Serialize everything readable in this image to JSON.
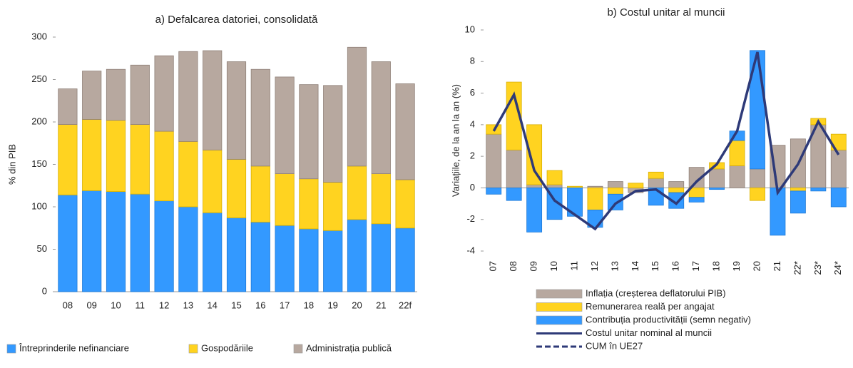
{
  "chart_data": [
    {
      "type": "bar",
      "stacked": true,
      "title": "a) Defalcarea datoriei, consolidată",
      "ylabel": "% din PIB",
      "categories": [
        "08",
        "09",
        "10",
        "11",
        "12",
        "13",
        "14",
        "15",
        "16",
        "17",
        "18",
        "19",
        "20",
        "21",
        "22f"
      ],
      "series": [
        {
          "name": "Întreprinderile nefinanciare",
          "color": "#3399ff",
          "values": [
            114,
            119,
            118,
            115,
            107,
            100,
            93,
            87,
            82,
            78,
            74,
            72,
            85,
            80,
            75
          ]
        },
        {
          "name": "Gospodăriile",
          "color": "#ffd320",
          "values": [
            83,
            84,
            84,
            82,
            82,
            77,
            74,
            69,
            66,
            61,
            59,
            57,
            63,
            59,
            57
          ]
        },
        {
          "name": "Administrația publică",
          "color": "#b7a89f",
          "values": [
            42,
            57,
            60,
            70,
            89,
            106,
            117,
            115,
            114,
            114,
            111,
            114,
            140,
            132,
            113
          ]
        }
      ],
      "ylim": [
        0,
        300
      ],
      "yticks": [
        0,
        50,
        100,
        150,
        200,
        250,
        300
      ],
      "legend": "bottom"
    },
    {
      "type": "bar",
      "stacked": true,
      "title": "b) Costul unitar al muncii",
      "ylabel": "Variațiile, de la an la an (%)",
      "categories": [
        "07",
        "08",
        "09",
        "10",
        "11",
        "12",
        "13",
        "14",
        "15",
        "16",
        "17",
        "18",
        "19",
        "20",
        "21",
        "22*",
        "23*",
        "24*"
      ],
      "series": [
        {
          "name": "Inflația (creșterea deflatorului PIB)",
          "color": "#b7a89f",
          "values": [
            3.4,
            2.4,
            0.2,
            0.2,
            0,
            0.1,
            0.4,
            -0.3,
            0.6,
            0.4,
            1.3,
            1.2,
            1.4,
            1.2,
            2.7,
            3.1,
            4.0,
            2.4
          ]
        },
        {
          "name": "Remunerarea reală per angajat",
          "color": "#ffd320",
          "values": [
            0.6,
            4.3,
            3.8,
            0.9,
            0.1,
            -1.4,
            -0.4,
            0.3,
            0.4,
            -0.3,
            -0.6,
            0.4,
            1.6,
            -0.8,
            0,
            -0.2,
            0.4,
            1.0
          ]
        },
        {
          "name": "Contribuția productivității (semn negativ)",
          "color": "#3399ff",
          "values": [
            -0.4,
            -0.8,
            -2.8,
            -2.0,
            -1.8,
            -1.1,
            -1.0,
            0,
            -1.1,
            -1.0,
            -0.3,
            -0.1,
            0.6,
            7.5,
            -3.0,
            -1.4,
            -0.2,
            -1.2
          ]
        },
        {
          "name": "Costul unitar nominal al muncii",
          "color": "#2e3a78",
          "type": "line",
          "values": [
            3.6,
            5.9,
            1.1,
            -0.8,
            -1.7,
            -2.6,
            -1.0,
            -0.2,
            -0.1,
            -1.0,
            0.4,
            1.5,
            3.6,
            8.6,
            -0.3,
            1.5,
            4.2,
            2.1
          ]
        },
        {
          "name": "CUM în UE27",
          "color": "#2e3a78",
          "type": "line",
          "dashed": true,
          "values": [
            null,
            null,
            null,
            null,
            null,
            null,
            null,
            null,
            null,
            null,
            null,
            null,
            null,
            null,
            null,
            null,
            null,
            null
          ]
        }
      ],
      "ylim": [
        -4,
        10
      ],
      "yticks": [
        -4,
        -2,
        0,
        2,
        4,
        6,
        8,
        10
      ],
      "legend": "bottom"
    }
  ]
}
